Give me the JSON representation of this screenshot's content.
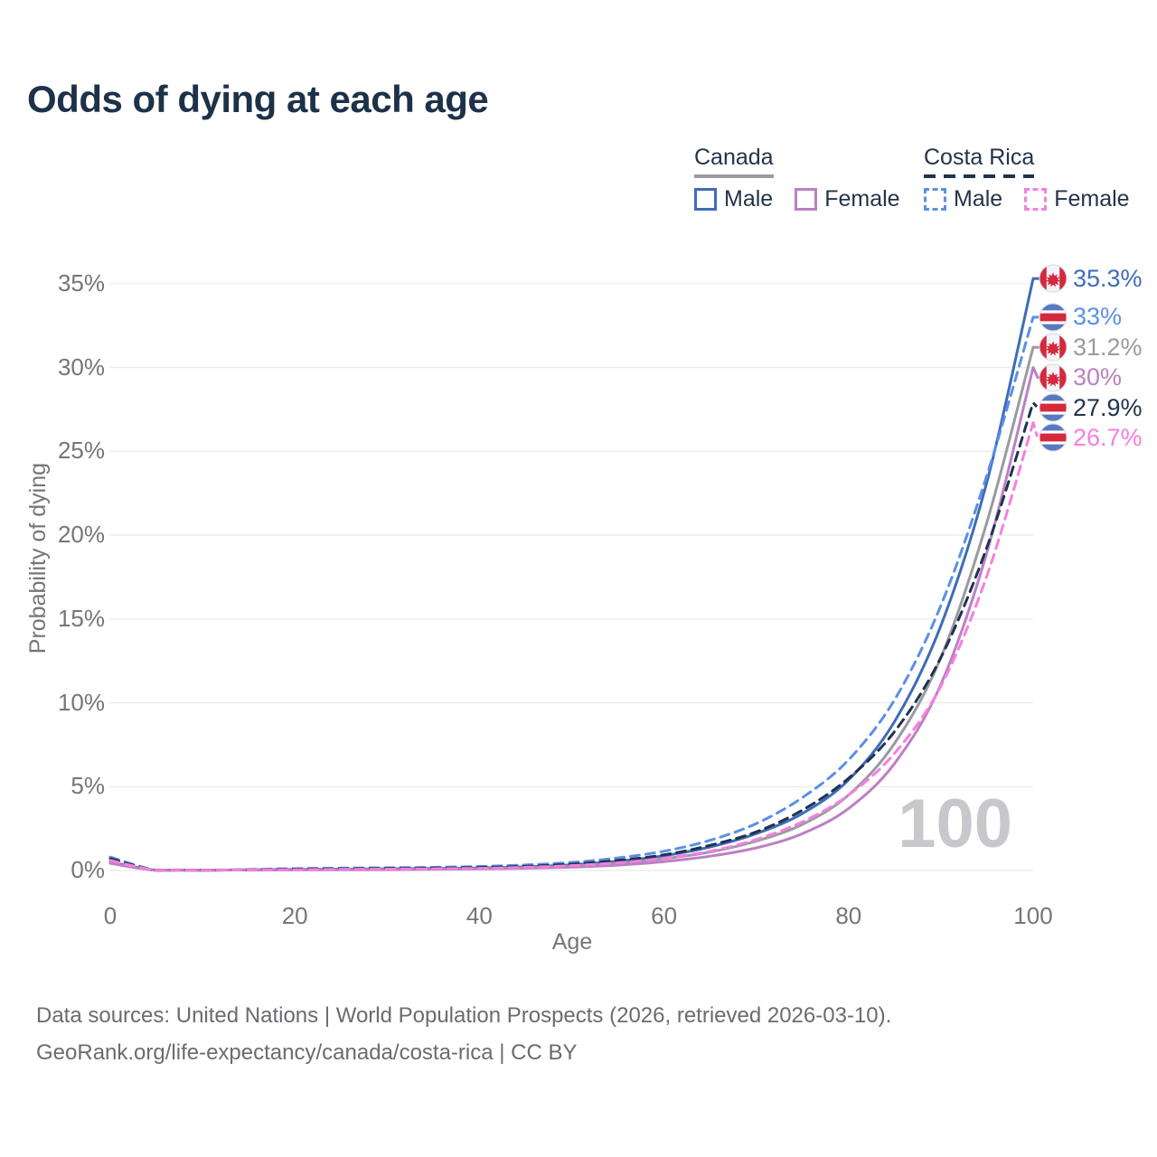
{
  "title": "Odds of dying at each age",
  "watermark": "100",
  "legend": {
    "groups": [
      {
        "label": "Canada",
        "dashed": false,
        "underline_color": "#9b9ba1",
        "items": [
          {
            "label": "Male",
            "color": "#3e6cb8",
            "dashed": false
          },
          {
            "label": "Female",
            "color": "#bc7fc4",
            "dashed": false
          }
        ]
      },
      {
        "label": "Costa Rica",
        "dashed": true,
        "underline_color": "#20334f",
        "items": [
          {
            "label": "Male",
            "color": "#5b8fe8",
            "dashed": true
          },
          {
            "label": "Female",
            "color": "#f67fdf",
            "dashed": true
          }
        ]
      }
    ]
  },
  "chart_data": {
    "type": "line",
    "title": "Odds of dying at each age",
    "xlabel": "Age",
    "ylabel": "Probability of dying",
    "xlim": [
      0,
      100
    ],
    "ylim": [
      0,
      35.5
    ],
    "x_ticks": [
      0,
      20,
      40,
      60,
      80,
      100
    ],
    "y_ticks": [
      "0%",
      "5%",
      "10%",
      "15%",
      "20%",
      "25%",
      "30%",
      "35%"
    ],
    "grid": "horizontal-only",
    "legend_position": "top-right",
    "ages": [
      0,
      5,
      10,
      15,
      20,
      25,
      30,
      35,
      40,
      45,
      50,
      55,
      60,
      65,
      70,
      75,
      80,
      85,
      90,
      95,
      100
    ],
    "series": [
      {
        "id": "canada-male",
        "name": "Canada Male",
        "flag": "canada",
        "color": "#3e6cb8",
        "dashed": false,
        "end_label": "35.3%",
        "values": [
          0.5,
          0.01,
          0.01,
          0.04,
          0.07,
          0.08,
          0.1,
          0.12,
          0.15,
          0.22,
          0.34,
          0.55,
          0.88,
          1.4,
          2.2,
          3.4,
          5.4,
          8.9,
          14.6,
          23.2,
          35.3
        ]
      },
      {
        "id": "costa-rica-male",
        "name": "Costa Rica Male",
        "flag": "costa-rica",
        "color": "#5b8fe8",
        "dashed": true,
        "end_label": "33%",
        "values": [
          0.8,
          0.02,
          0.02,
          0.06,
          0.11,
          0.14,
          0.16,
          0.19,
          0.24,
          0.33,
          0.48,
          0.75,
          1.15,
          1.8,
          2.8,
          4.35,
          6.6,
          10.2,
          15.8,
          23.6,
          33.0
        ]
      },
      {
        "id": "canada-both",
        "name": "Canada (both sexes)",
        "flag": "canada",
        "color": "#9a9aa0",
        "dashed": false,
        "end_label": "31.2%",
        "values": [
          0.45,
          0.01,
          0.01,
          0.03,
          0.05,
          0.06,
          0.07,
          0.09,
          0.12,
          0.17,
          0.27,
          0.43,
          0.7,
          1.1,
          1.75,
          2.75,
          4.5,
          7.6,
          12.7,
          20.8,
          31.2
        ]
      },
      {
        "id": "canada-female",
        "name": "Canada Female",
        "flag": "canada",
        "color": "#bc7fc4",
        "dashed": false,
        "end_label": "30%",
        "values": [
          0.42,
          0.01,
          0.01,
          0.02,
          0.03,
          0.04,
          0.05,
          0.07,
          0.09,
          0.13,
          0.2,
          0.32,
          0.53,
          0.85,
          1.35,
          2.2,
          3.7,
          6.4,
          11.1,
          19.0,
          30.0
        ]
      },
      {
        "id": "costa-rica-both",
        "name": "Costa Rica (both sexes)",
        "flag": "costa-rica",
        "color": "#20334f",
        "dashed": true,
        "end_label": "27.9%",
        "values": [
          0.7,
          0.015,
          0.015,
          0.04,
          0.08,
          0.1,
          0.12,
          0.14,
          0.18,
          0.25,
          0.38,
          0.6,
          0.93,
          1.5,
          2.3,
          3.6,
          5.5,
          8.3,
          12.7,
          19.3,
          27.9
        ]
      },
      {
        "id": "costa-rica-female",
        "name": "Costa Rica Female",
        "flag": "costa-rica",
        "color": "#f67fdf",
        "dashed": true,
        "end_label": "26.7%",
        "values": [
          0.6,
          0.01,
          0.01,
          0.03,
          0.05,
          0.07,
          0.08,
          0.1,
          0.13,
          0.19,
          0.29,
          0.46,
          0.73,
          1.15,
          1.85,
          2.9,
          4.5,
          7.0,
          11.0,
          17.6,
          26.7
        ]
      }
    ]
  },
  "footer": {
    "line1": "Data sources: United Nations | World Population Prospects (2026, retrieved 2026-03-10).",
    "line2": "GeoRank.org/life-expectancy/canada/costa-rica | CC BY"
  }
}
